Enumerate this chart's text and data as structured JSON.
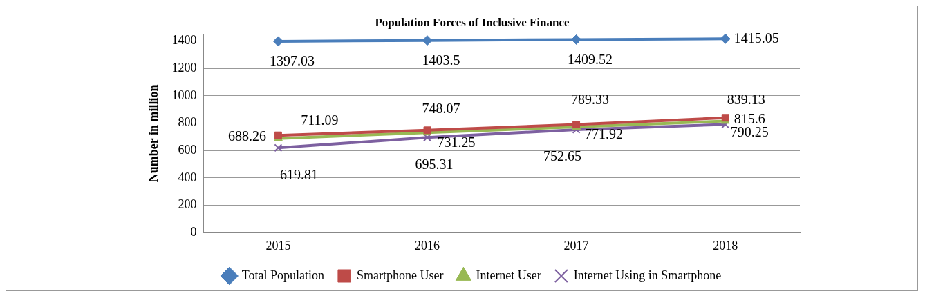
{
  "chart_data": {
    "type": "line",
    "title": "Population Forces of Inclusive Finance",
    "ylabel": "Number in million",
    "categories": [
      "2015",
      "2016",
      "2017",
      "2018"
    ],
    "series": [
      {
        "name": "Total Population",
        "color": "#4a7ebb",
        "marker": "diamond",
        "values": [
          1397.03,
          1403.5,
          1409.52,
          1415.05
        ]
      },
      {
        "name": "Smartphone User",
        "color": "#be4b48",
        "marker": "square",
        "values": [
          711.09,
          748.07,
          789.33,
          839.13
        ]
      },
      {
        "name": "Internet User",
        "color": "#98b954",
        "marker": "triangle",
        "values": [
          688.26,
          731.25,
          771.92,
          815.6
        ]
      },
      {
        "name": "Internet Using in Smartphone",
        "color": "#7d60a0",
        "marker": "cross",
        "values": [
          619.81,
          695.31,
          752.65,
          790.25
        ]
      }
    ],
    "ylim": [
      0,
      1450
    ],
    "yticks": [
      0,
      200,
      400,
      600,
      800,
      1000,
      1200,
      1400
    ],
    "grid": "y",
    "legend": "bottom",
    "data_labels": true
  }
}
